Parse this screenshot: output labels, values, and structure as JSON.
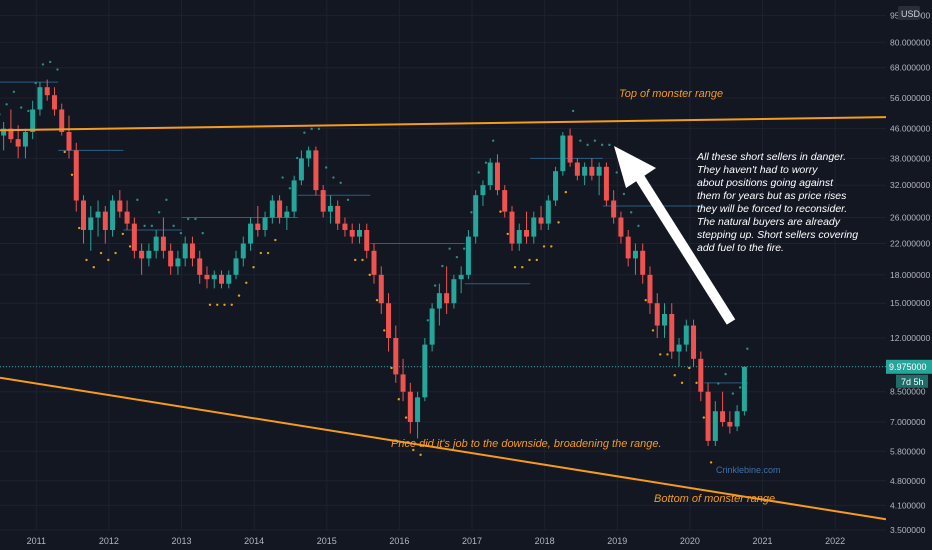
{
  "chart_data": {
    "type": "candlestick",
    "title": "",
    "currency": "USD",
    "log_scale": true,
    "ylim": [
      3.5,
      105
    ],
    "xlim": [
      2010.5,
      2022.7
    ],
    "x_ticks": [
      "2011",
      "2012",
      "2013",
      "2014",
      "2015",
      "2016",
      "2017",
      "2018",
      "2019",
      "2020",
      "2021",
      "2022"
    ],
    "y_ticks": [
      "95.000000",
      "80.000000",
      "68.000000",
      "56.000000",
      "46.000000",
      "38.000000",
      "32.000000",
      "26.000000",
      "22.000000",
      "18.000000",
      "15.000000",
      "12.000000",
      "10.000000",
      "8.500000",
      "7.000000",
      "5.800000",
      "4.800000",
      "4.100000",
      "3.500000"
    ],
    "price_label": "9.975000",
    "price_value": 9.975,
    "countdown_label": "7d 5h",
    "colors": {
      "background": "#131722",
      "up": "#26a69a",
      "down": "#ef5350",
      "trendline": "#f59b1f",
      "text": "#b2b5be",
      "annotation": "#f59b1f",
      "note": "#ffffff",
      "arrow": "#ffffff",
      "price_line": "#26a69a"
    },
    "candles": [
      {
        "t": 2010.35,
        "o": 46,
        "h": 49,
        "l": 40,
        "c": 42
      },
      {
        "t": 2010.45,
        "o": 42,
        "h": 45,
        "l": 38,
        "c": 44
      },
      {
        "t": 2010.55,
        "o": 44,
        "h": 48,
        "l": 40,
        "c": 46
      },
      {
        "t": 2010.65,
        "o": 46,
        "h": 52,
        "l": 42,
        "c": 43
      },
      {
        "t": 2010.75,
        "o": 43,
        "h": 47,
        "l": 38,
        "c": 41
      },
      {
        "t": 2010.85,
        "o": 41,
        "h": 46,
        "l": 38,
        "c": 45
      },
      {
        "t": 2010.95,
        "o": 45,
        "h": 55,
        "l": 43,
        "c": 52
      },
      {
        "t": 2011.05,
        "o": 52,
        "h": 62,
        "l": 50,
        "c": 60
      },
      {
        "t": 2011.15,
        "o": 60,
        "h": 63,
        "l": 55,
        "c": 57
      },
      {
        "t": 2011.25,
        "o": 57,
        "h": 60,
        "l": 50,
        "c": 52
      },
      {
        "t": 2011.35,
        "o": 52,
        "h": 54,
        "l": 44,
        "c": 45
      },
      {
        "t": 2011.45,
        "o": 45,
        "h": 50,
        "l": 38,
        "c": 40
      },
      {
        "t": 2011.55,
        "o": 40,
        "h": 42,
        "l": 27,
        "c": 29
      },
      {
        "t": 2011.65,
        "o": 29,
        "h": 30,
        "l": 22,
        "c": 24
      },
      {
        "t": 2011.75,
        "o": 24,
        "h": 28,
        "l": 21,
        "c": 26
      },
      {
        "t": 2011.85,
        "o": 26,
        "h": 29,
        "l": 23,
        "c": 27
      },
      {
        "t": 2011.95,
        "o": 27,
        "h": 28,
        "l": 22,
        "c": 24
      },
      {
        "t": 2012.05,
        "o": 24,
        "h": 30,
        "l": 23,
        "c": 29
      },
      {
        "t": 2012.15,
        "o": 29,
        "h": 31,
        "l": 26,
        "c": 27
      },
      {
        "t": 2012.25,
        "o": 27,
        "h": 29,
        "l": 24,
        "c": 25
      },
      {
        "t": 2012.35,
        "o": 25,
        "h": 26,
        "l": 20,
        "c": 21
      },
      {
        "t": 2012.45,
        "o": 21,
        "h": 22,
        "l": 18,
        "c": 20
      },
      {
        "t": 2012.55,
        "o": 20,
        "h": 22,
        "l": 19,
        "c": 21
      },
      {
        "t": 2012.65,
        "o": 21,
        "h": 24,
        "l": 20,
        "c": 23
      },
      {
        "t": 2012.75,
        "o": 23,
        "h": 26,
        "l": 20,
        "c": 21
      },
      {
        "t": 2012.85,
        "o": 21,
        "h": 22,
        "l": 18,
        "c": 19
      },
      {
        "t": 2012.95,
        "o": 19,
        "h": 21,
        "l": 18,
        "c": 20
      },
      {
        "t": 2013.05,
        "o": 20,
        "h": 23,
        "l": 19,
        "c": 22
      },
      {
        "t": 2013.15,
        "o": 22,
        "h": 23,
        "l": 19,
        "c": 20
      },
      {
        "t": 2013.25,
        "o": 20,
        "h": 21,
        "l": 17,
        "c": 18
      },
      {
        "t": 2013.35,
        "o": 18,
        "h": 19,
        "l": 16.5,
        "c": 17.5
      },
      {
        "t": 2013.45,
        "o": 17.5,
        "h": 18.5,
        "l": 16.5,
        "c": 18
      },
      {
        "t": 2013.55,
        "o": 18,
        "h": 18.5,
        "l": 16.5,
        "c": 17
      },
      {
        "t": 2013.65,
        "o": 17,
        "h": 18.5,
        "l": 16.5,
        "c": 18
      },
      {
        "t": 2013.75,
        "o": 18,
        "h": 21,
        "l": 17.5,
        "c": 20
      },
      {
        "t": 2013.85,
        "o": 20,
        "h": 23,
        "l": 19,
        "c": 22
      },
      {
        "t": 2013.95,
        "o": 22,
        "h": 26,
        "l": 21,
        "c": 25
      },
      {
        "t": 2014.05,
        "o": 25,
        "h": 28,
        "l": 23,
        "c": 24
      },
      {
        "t": 2014.15,
        "o": 24,
        "h": 27,
        "l": 23,
        "c": 26
      },
      {
        "t": 2014.25,
        "o": 26,
        "h": 30,
        "l": 25,
        "c": 29
      },
      {
        "t": 2014.35,
        "o": 29,
        "h": 30,
        "l": 25,
        "c": 26
      },
      {
        "t": 2014.45,
        "o": 26,
        "h": 28,
        "l": 24,
        "c": 27
      },
      {
        "t": 2014.55,
        "o": 27,
        "h": 34,
        "l": 26,
        "c": 33
      },
      {
        "t": 2014.65,
        "o": 33,
        "h": 40,
        "l": 32,
        "c": 38
      },
      {
        "t": 2014.75,
        "o": 38,
        "h": 41,
        "l": 36,
        "c": 40
      },
      {
        "t": 2014.85,
        "o": 40,
        "h": 41,
        "l": 30,
        "c": 31
      },
      {
        "t": 2014.95,
        "o": 31,
        "h": 32,
        "l": 26,
        "c": 27
      },
      {
        "t": 2015.05,
        "o": 27,
        "h": 30,
        "l": 25,
        "c": 28
      },
      {
        "t": 2015.15,
        "o": 28,
        "h": 29,
        "l": 24,
        "c": 25
      },
      {
        "t": 2015.25,
        "o": 25,
        "h": 26,
        "l": 23,
        "c": 24
      },
      {
        "t": 2015.35,
        "o": 24,
        "h": 25,
        "l": 22,
        "c": 23
      },
      {
        "t": 2015.45,
        "o": 23,
        "h": 25,
        "l": 22,
        "c": 24
      },
      {
        "t": 2015.55,
        "o": 24,
        "h": 25,
        "l": 20,
        "c": 21
      },
      {
        "t": 2015.65,
        "o": 21,
        "h": 22,
        "l": 17,
        "c": 18
      },
      {
        "t": 2015.75,
        "o": 18,
        "h": 19,
        "l": 14,
        "c": 15
      },
      {
        "t": 2015.85,
        "o": 15,
        "h": 16,
        "l": 11,
        "c": 12
      },
      {
        "t": 2015.95,
        "o": 12,
        "h": 13,
        "l": 9,
        "c": 9.5
      },
      {
        "t": 2016.05,
        "o": 9.5,
        "h": 10.5,
        "l": 8,
        "c": 8.5
      },
      {
        "t": 2016.15,
        "o": 8.5,
        "h": 9,
        "l": 6.5,
        "c": 7
      },
      {
        "t": 2016.25,
        "o": 7,
        "h": 8.5,
        "l": 6.3,
        "c": 8.2
      },
      {
        "t": 2016.35,
        "o": 8.2,
        "h": 12,
        "l": 8,
        "c": 11.5
      },
      {
        "t": 2016.45,
        "o": 11.5,
        "h": 15,
        "l": 11,
        "c": 14.5
      },
      {
        "t": 2016.55,
        "o": 14.5,
        "h": 17,
        "l": 13,
        "c": 16
      },
      {
        "t": 2016.65,
        "o": 16,
        "h": 19,
        "l": 14,
        "c": 15
      },
      {
        "t": 2016.75,
        "o": 15,
        "h": 18,
        "l": 14.5,
        "c": 17.5
      },
      {
        "t": 2016.85,
        "o": 17.5,
        "h": 19,
        "l": 16,
        "c": 18
      },
      {
        "t": 2016.95,
        "o": 18,
        "h": 24,
        "l": 17.5,
        "c": 23
      },
      {
        "t": 2017.05,
        "o": 23,
        "h": 31,
        "l": 22,
        "c": 30
      },
      {
        "t": 2017.15,
        "o": 30,
        "h": 33,
        "l": 28,
        "c": 32
      },
      {
        "t": 2017.25,
        "o": 32,
        "h": 38,
        "l": 31,
        "c": 37
      },
      {
        "t": 2017.35,
        "o": 37,
        "h": 39,
        "l": 30,
        "c": 31
      },
      {
        "t": 2017.45,
        "o": 31,
        "h": 32,
        "l": 26,
        "c": 27
      },
      {
        "t": 2017.55,
        "o": 27,
        "h": 28,
        "l": 21,
        "c": 22
      },
      {
        "t": 2017.65,
        "o": 22,
        "h": 25,
        "l": 21,
        "c": 24
      },
      {
        "t": 2017.75,
        "o": 24,
        "h": 27,
        "l": 22,
        "c": 23
      },
      {
        "t": 2017.85,
        "o": 23,
        "h": 27,
        "l": 22,
        "c": 26
      },
      {
        "t": 2017.95,
        "o": 26,
        "h": 28,
        "l": 24,
        "c": 25
      },
      {
        "t": 2018.05,
        "o": 25,
        "h": 30,
        "l": 24,
        "c": 29
      },
      {
        "t": 2018.15,
        "o": 29,
        "h": 36,
        "l": 28,
        "c": 35
      },
      {
        "t": 2018.25,
        "o": 35,
        "h": 45,
        "l": 34,
        "c": 44
      },
      {
        "t": 2018.35,
        "o": 44,
        "h": 46,
        "l": 36,
        "c": 37
      },
      {
        "t": 2018.45,
        "o": 37,
        "h": 38,
        "l": 33,
        "c": 34
      },
      {
        "t": 2018.55,
        "o": 34,
        "h": 37,
        "l": 32,
        "c": 36
      },
      {
        "t": 2018.65,
        "o": 36,
        "h": 38,
        "l": 33,
        "c": 34
      },
      {
        "t": 2018.75,
        "o": 34,
        "h": 37,
        "l": 30,
        "c": 36
      },
      {
        "t": 2018.85,
        "o": 36,
        "h": 37,
        "l": 28,
        "c": 29
      },
      {
        "t": 2018.95,
        "o": 29,
        "h": 31,
        "l": 25,
        "c": 26
      },
      {
        "t": 2019.05,
        "o": 26,
        "h": 27,
        "l": 22,
        "c": 23
      },
      {
        "t": 2019.15,
        "o": 23,
        "h": 24,
        "l": 19,
        "c": 20
      },
      {
        "t": 2019.25,
        "o": 20,
        "h": 22,
        "l": 18,
        "c": 21
      },
      {
        "t": 2019.35,
        "o": 21,
        "h": 22,
        "l": 17,
        "c": 18
      },
      {
        "t": 2019.45,
        "o": 18,
        "h": 19,
        "l": 14,
        "c": 15
      },
      {
        "t": 2019.55,
        "o": 15,
        "h": 16,
        "l": 12,
        "c": 13
      },
      {
        "t": 2019.65,
        "o": 13,
        "h": 15,
        "l": 12,
        "c": 14
      },
      {
        "t": 2019.75,
        "o": 14,
        "h": 15,
        "l": 10.5,
        "c": 11
      },
      {
        "t": 2019.85,
        "o": 11,
        "h": 12,
        "l": 10,
        "c": 11.5
      },
      {
        "t": 2019.95,
        "o": 11.5,
        "h": 13.5,
        "l": 11,
        "c": 13
      },
      {
        "t": 2020.05,
        "o": 13,
        "h": 13.5,
        "l": 10,
        "c": 10.5
      },
      {
        "t": 2020.15,
        "o": 10.5,
        "h": 11,
        "l": 8,
        "c": 8.5
      },
      {
        "t": 2020.25,
        "o": 8.5,
        "h": 9,
        "l": 6,
        "c": 6.2
      },
      {
        "t": 2020.35,
        "o": 6.2,
        "h": 8,
        "l": 6,
        "c": 7.5
      },
      {
        "t": 2020.45,
        "o": 7.5,
        "h": 8.5,
        "l": 6.8,
        "c": 7
      },
      {
        "t": 2020.55,
        "o": 7,
        "h": 7.5,
        "l": 6.5,
        "c": 6.8
      },
      {
        "t": 2020.65,
        "o": 6.8,
        "h": 7.8,
        "l": 6.6,
        "c": 7.5
      },
      {
        "t": 2020.75,
        "o": 7.5,
        "h": 10,
        "l": 7.3,
        "c": 9.975
      }
    ],
    "annotations": {
      "top_label": "Top of monster range",
      "bottom_label": "Bottom of monster range",
      "mid_label": "Price did it's job to the downside, broadening the range.",
      "watermark": "Crinklebine.com",
      "note_lines": [
        "All these short sellers in danger.",
        "They haven't had to worry",
        "about positions going against",
        "them for years but as price rises",
        "they will be forced to reconsider.",
        "The natural buyers are already",
        "stepping up. Short sellers covering",
        "add fuel to the fire."
      ]
    },
    "trendlines": {
      "top": {
        "from": [
          2010.5,
          45.5
        ],
        "to": [
          2022.7,
          49.5
        ]
      },
      "bottom": {
        "from": [
          2010.5,
          9.3
        ],
        "to": [
          2022.7,
          3.75
        ]
      }
    }
  }
}
